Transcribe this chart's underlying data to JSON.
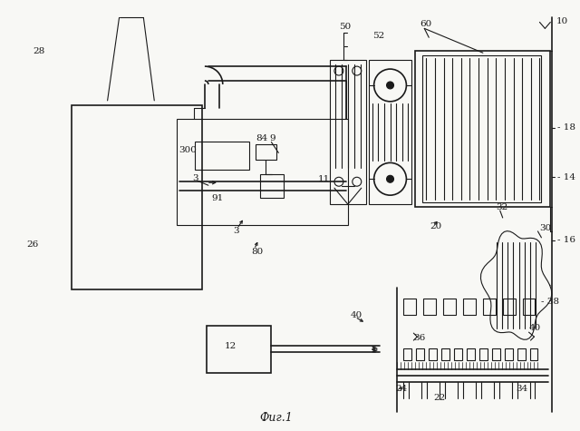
{
  "bg_color": "#f8f8f5",
  "line_color": "#1a1a1a",
  "title": "Фиг.1"
}
